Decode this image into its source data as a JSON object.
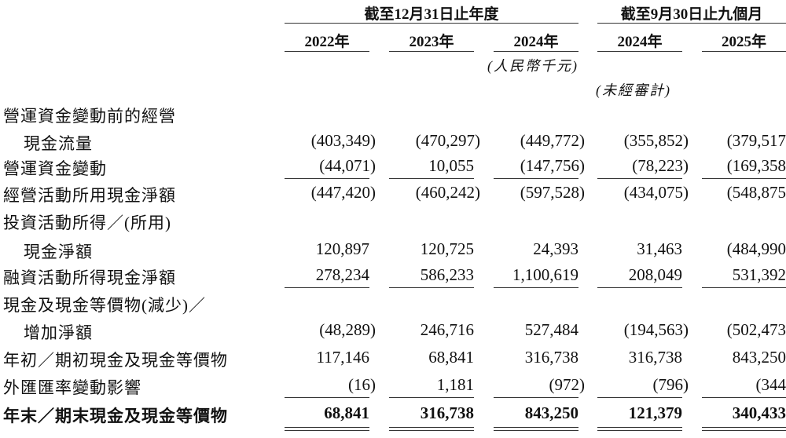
{
  "header": {
    "group_fy": "截至12月31日止年度",
    "group_9m": "截至9月30日止九個月",
    "years": [
      "2022年",
      "2023年",
      "2024年",
      "2024年",
      "2025年"
    ],
    "unit_note": "(人民幣千元)",
    "unaudited_note": "(未經審計)"
  },
  "rows": [
    {
      "label": "營運資金變動前的經營",
      "values": []
    },
    {
      "label": "現金流量",
      "indent": true,
      "values": [
        "(403,349)",
        "(470,297)",
        "(449,772)",
        "(355,852)",
        "(379,517"
      ]
    },
    {
      "label": "營運資金變動",
      "values": [
        "(44,071)",
        "10,055",
        "(147,756)",
        "(78,223)",
        "(169,358"
      ],
      "rule": "single"
    },
    {
      "label": "經營活動所用現金淨額",
      "values": [
        "(447,420)",
        "(460,242)",
        "(597,528)",
        "(434,075)",
        "(548,875"
      ]
    },
    {
      "label": "投資活動所得／(所用)",
      "values": []
    },
    {
      "label": "現金淨額",
      "indent": true,
      "values": [
        "120,897",
        "120,725",
        "24,393",
        "31,463",
        "(484,990"
      ]
    },
    {
      "label": "融資活動所得現金淨額",
      "values": [
        "278,234",
        "586,233",
        "1,100,619",
        "208,049",
        "531,392"
      ],
      "rule": "single"
    },
    {
      "label": "現金及現金等價物(減少)／",
      "values": []
    },
    {
      "label": "增加淨額",
      "indent": true,
      "values": [
        "(48,289)",
        "246,716",
        "527,484",
        "(194,563)",
        "(502,473"
      ]
    },
    {
      "label": "年初／期初現金及現金等價物",
      "values": [
        "117,146",
        "68,841",
        "316,738",
        "316,738",
        "843,250"
      ]
    },
    {
      "label": "外匯匯率變動影響",
      "values": [
        "(16)",
        "1,181",
        "(972)",
        "(796)",
        "(344"
      ],
      "rule": "single"
    },
    {
      "label": "年末／期末現金及現金等價物",
      "bold": true,
      "values": [
        "68,841",
        "316,738",
        "843,250",
        "121,379",
        "340,433"
      ],
      "rule": "double"
    }
  ]
}
